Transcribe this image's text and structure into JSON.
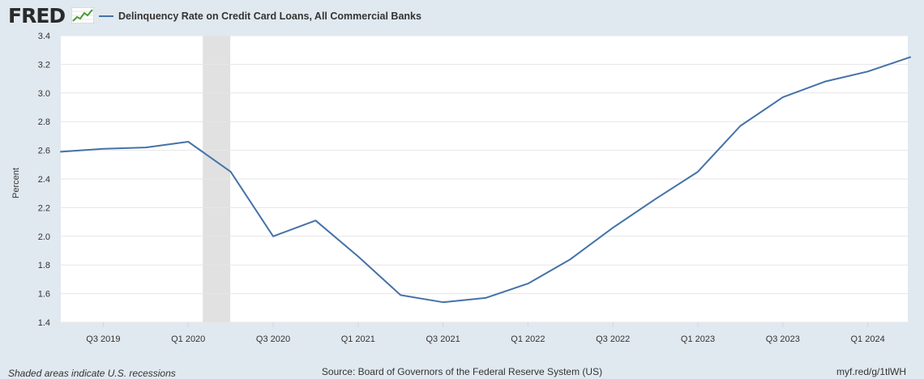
{
  "header": {
    "logo_text": "FRED",
    "legend_label": "Delinquency Rate on Credit Card Loans, All Commercial Banks"
  },
  "footer": {
    "note": "Shaded areas indicate U.S. recessions",
    "source": "Source: Board of Governors of the Federal Reserve System (US)",
    "link": "myf.red/g/1tlWH"
  },
  "colors": {
    "line": "#4572a7",
    "recession": "#e1e1e1",
    "background": "#e1e9f0",
    "plot": "#ffffff"
  },
  "chart_data": {
    "type": "line",
    "title": "",
    "xlabel": "",
    "ylabel": "Percent",
    "ylim": [
      1.4,
      3.4
    ],
    "yticks": [
      1.4,
      1.6,
      1.8,
      2.0,
      2.2,
      2.4,
      2.6,
      2.8,
      3.0,
      3.2,
      3.4
    ],
    "x_tick_labels": [
      "Q3 2019",
      "Q1 2020",
      "Q3 2020",
      "Q1 2021",
      "Q3 2021",
      "Q1 2022",
      "Q3 2022",
      "Q1 2023",
      "Q3 2023",
      "Q1 2024"
    ],
    "x": [
      "2019 Q2",
      "2019 Q3",
      "2019 Q4",
      "2020 Q1",
      "2020 Q2",
      "2020 Q3",
      "2020 Q4",
      "2021 Q1",
      "2021 Q2",
      "2021 Q3",
      "2021 Q4",
      "2022 Q1",
      "2022 Q2",
      "2022 Q3",
      "2022 Q4",
      "2023 Q1",
      "2023 Q2",
      "2023 Q3",
      "2023 Q4",
      "2024 Q1",
      "2024 Q2"
    ],
    "series": [
      {
        "name": "Delinquency Rate on Credit Card Loans, All Commercial Banks",
        "values": [
          2.59,
          2.61,
          2.62,
          2.66,
          2.45,
          2.0,
          2.11,
          1.86,
          1.59,
          1.54,
          1.57,
          1.67,
          1.84,
          2.06,
          2.26,
          2.45,
          2.77,
          2.97,
          3.08,
          3.15,
          3.25
        ]
      }
    ],
    "recession_shading": {
      "start": "2020 Q1",
      "end": "2020 Q2"
    },
    "grid": true
  }
}
